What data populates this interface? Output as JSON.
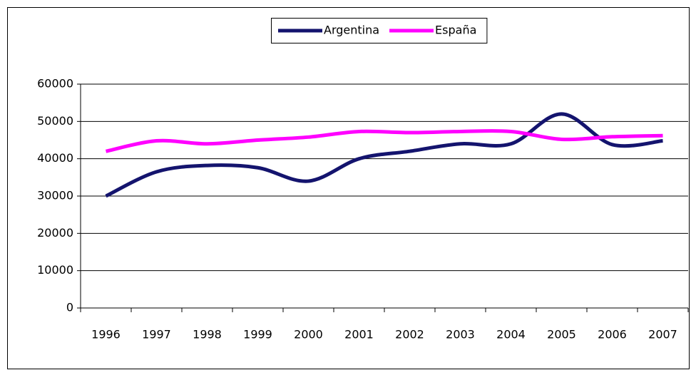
{
  "chart_data": {
    "type": "line",
    "categories": [
      "1996",
      "1997",
      "1998",
      "1999",
      "2000",
      "2001",
      "2002",
      "2003",
      "2004",
      "2005",
      "2006",
      "2007"
    ],
    "series": [
      {
        "name": "Argentina",
        "color": "#14146e",
        "values": [
          30000,
          36500,
          38200,
          37600,
          34000,
          40000,
          42000,
          44000,
          44000,
          52000,
          43800,
          44800
        ]
      },
      {
        "name": "España",
        "color": "#ff00ff",
        "values": [
          42000,
          44800,
          44000,
          45000,
          45800,
          47300,
          47000,
          47300,
          47300,
          45200,
          45900,
          46200
        ]
      }
    ],
    "ylim": [
      0,
      60000
    ],
    "yticks": [
      0,
      10000,
      20000,
      30000,
      40000,
      50000,
      60000
    ],
    "grid": true,
    "legend": "top",
    "smooth": true
  }
}
